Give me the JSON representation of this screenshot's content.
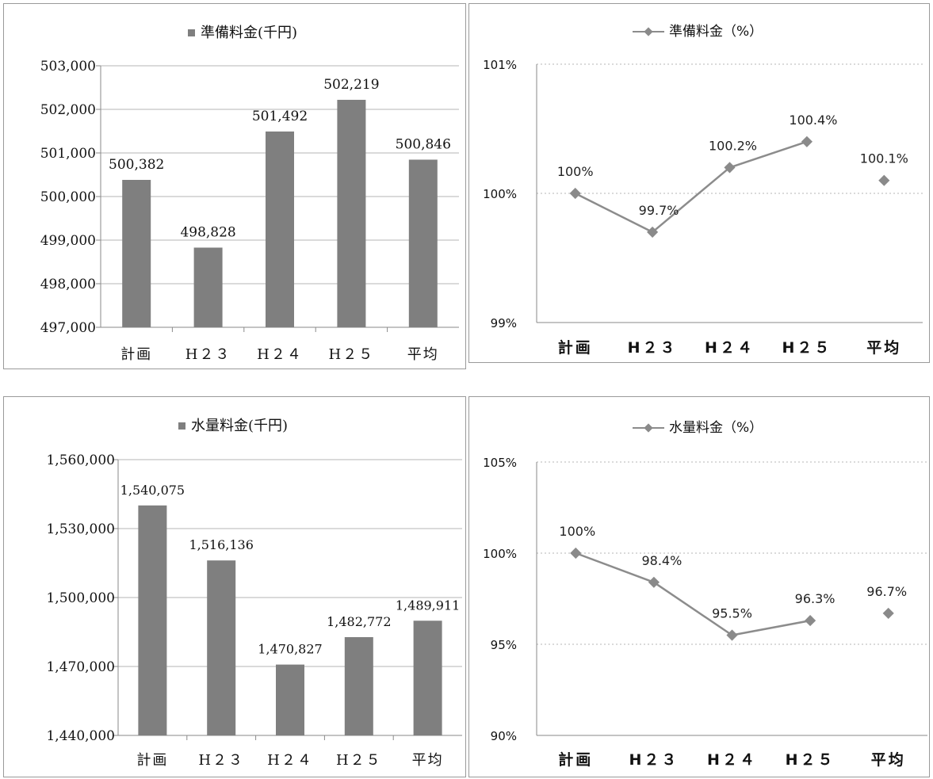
{
  "charts": {
    "colors": {
      "bar": "#7f7f7f",
      "line": "#8c8c8c",
      "marker": "#8a8a8a",
      "grid": "#b5b5b5",
      "axis": "#8a8a8a"
    },
    "chart_data": [
      {
        "type": "bar",
        "title": "準備料金(千円)",
        "legend_marker": "■",
        "categories": [
          "計画",
          "H２３",
          "H２４",
          "H２５",
          "平均"
        ],
        "series": [
          {
            "name": "準備料金(千円)",
            "values": [
              500382,
              498828,
              501492,
              502219,
              500846
            ]
          }
        ],
        "data_labels": [
          "500,382",
          "498,828",
          "501,492",
          "502,219",
          "500,846"
        ],
        "ylim": [
          497000,
          503000
        ],
        "yticks": [
          497000,
          498000,
          499000,
          500000,
          501000,
          502000,
          503000
        ],
        "ytick_labels": [
          "497,000",
          "498,000",
          "499,000",
          "500,000",
          "501,000",
          "502,000",
          "503,000"
        ],
        "grid": true,
        "legend_position": "top"
      },
      {
        "type": "line",
        "title": "準備料金（%）",
        "categories": [
          "計画",
          "H２３",
          "H２４",
          "H２５",
          "平均"
        ],
        "series": [
          {
            "name": "準備料金（%）",
            "values": [
              100,
              99.7,
              100.2,
              100.4,
              100.1
            ]
          }
        ],
        "line_break_before_last": true,
        "data_labels": [
          "100%",
          "99.7%",
          "100.2%",
          "100.4%",
          "100.1%"
        ],
        "ylim": [
          99,
          101
        ],
        "yticks": [
          99,
          100,
          101
        ],
        "ytick_labels": [
          "99%",
          "100%",
          "101%"
        ],
        "grid": true,
        "legend_position": "top"
      },
      {
        "type": "bar",
        "title": "水量料金(千円)",
        "legend_marker": "■",
        "categories": [
          "計画",
          "H２３",
          "H２４",
          "H２５",
          "平均"
        ],
        "series": [
          {
            "name": "水量料金(千円)",
            "values": [
              1540075,
              1516136,
              1470827,
              1482772,
              1489911
            ]
          }
        ],
        "data_labels": [
          "1,540,075",
          "1,516,136",
          "1,470,827",
          "1,482,772",
          "1,489,911"
        ],
        "ylim": [
          1440000,
          1560000
        ],
        "yticks": [
          1440000,
          1470000,
          1500000,
          1530000,
          1560000
        ],
        "ytick_labels": [
          "1,440,000",
          "1,470,000",
          "1,500,000",
          "1,530,000",
          "1,560,000"
        ],
        "grid": true,
        "legend_position": "top"
      },
      {
        "type": "line",
        "title": "水量料金（%）",
        "categories": [
          "計画",
          "H２３",
          "H２４",
          "H２５",
          "平均"
        ],
        "series": [
          {
            "name": "水量料金（%）",
            "values": [
              100,
              98.4,
              95.5,
              96.3,
              96.7
            ]
          }
        ],
        "line_break_before_last": true,
        "data_labels": [
          "100%",
          "98.4%",
          "95.5%",
          "96.3%",
          "96.7%"
        ],
        "ylim": [
          90,
          105
        ],
        "yticks": [
          90,
          95,
          100,
          105
        ],
        "ytick_labels": [
          "90%",
          "95%",
          "100%",
          "105%"
        ],
        "grid": true,
        "legend_position": "top"
      }
    ]
  }
}
